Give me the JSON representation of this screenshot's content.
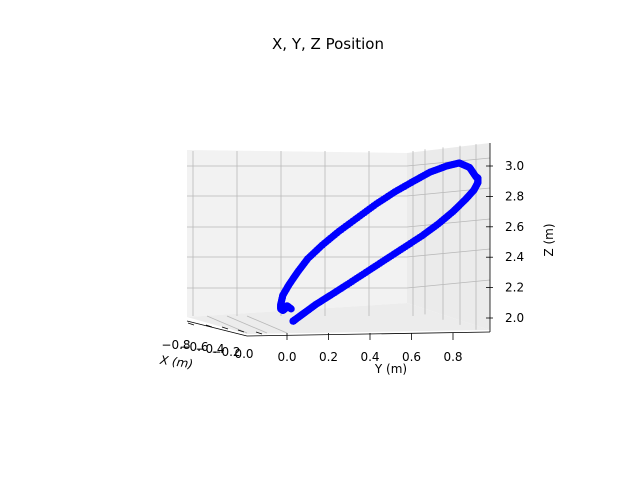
{
  "chart_data": {
    "type": "scatter",
    "projection": "3d",
    "title": "X, Y, Z Position",
    "xlabel": "X (m)",
    "ylabel": "Y (m)",
    "zlabel": "Z (m)",
    "x_ticks": [
      "−0.8",
      "−0.6",
      "−0.4",
      "−0.2",
      "0.0"
    ],
    "y_ticks": [
      "0.0",
      "0.2",
      "0.4",
      "0.6",
      "0.8"
    ],
    "z_ticks": [
      "2.0",
      "2.2",
      "2.4",
      "2.6",
      "2.8",
      "3.0"
    ],
    "ylim": [
      -0.08,
      0.98
    ],
    "zlim": [
      1.92,
      3.06
    ],
    "grid": true,
    "marker_color": "#0000ff",
    "series": [
      {
        "y": [
          0.03,
          0.03,
          0.04,
          0.06,
          0.09,
          0.14,
          0.21,
          0.29,
          0.38,
          0.47,
          0.56,
          0.65,
          0.73,
          0.8,
          0.86,
          0.9,
          0.92,
          0.92,
          0.91,
          0.88,
          0.83,
          0.77,
          0.69,
          0.61,
          0.52,
          0.43,
          0.34,
          0.25,
          0.17,
          0.1,
          0.05,
          0.01,
          -0.02,
          -0.03,
          -0.03,
          -0.02,
          -0.01,
          0.0,
          0.02
        ],
        "z": [
          1.98,
          1.98,
          1.99,
          2.01,
          2.04,
          2.09,
          2.15,
          2.22,
          2.3,
          2.38,
          2.46,
          2.54,
          2.62,
          2.7,
          2.78,
          2.84,
          2.89,
          2.92,
          2.93,
          2.99,
          3.02,
          3.0,
          2.96,
          2.9,
          2.83,
          2.75,
          2.66,
          2.57,
          2.48,
          2.39,
          2.3,
          2.22,
          2.15,
          2.09,
          2.06,
          2.05,
          2.06,
          2.08,
          2.06
        ]
      }
    ]
  }
}
